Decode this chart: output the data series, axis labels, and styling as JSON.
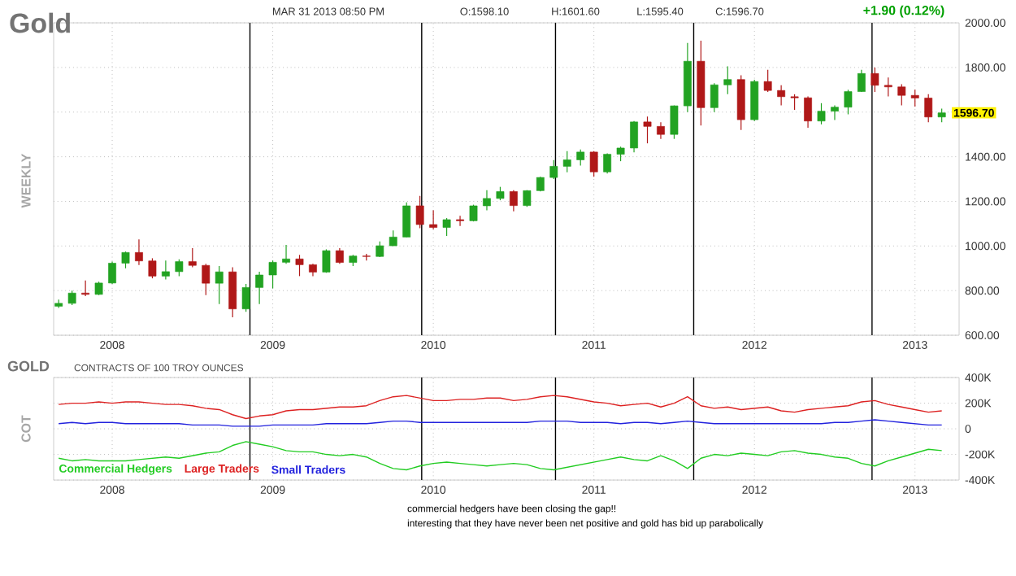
{
  "chart_data": [
    {
      "type": "candlestick",
      "title": "Gold",
      "ylabel": "WEEKLY",
      "annotations": [
        "MAR 31 2013 08:50 PM",
        "O:1598.10",
        "H:1601.60",
        "L:1595.40",
        "C:1596.70",
        "+1.90 (0.12%)",
        {
          "text": "1596.70",
          "x": "2013-03",
          "y": 1596.7
        }
      ],
      "x": [
        "2007-09",
        "2007-10",
        "2007-11",
        "2007-12",
        "2008-01",
        "2008-02",
        "2008-03",
        "2008-04",
        "2008-05",
        "2008-06",
        "2008-07",
        "2008-08",
        "2008-09",
        "2008-10",
        "2008-11",
        "2008-12",
        "2009-01",
        "2009-02",
        "2009-03",
        "2009-04",
        "2009-05",
        "2009-06",
        "2009-07",
        "2009-08",
        "2009-09",
        "2009-10",
        "2009-11",
        "2009-12",
        "2010-01",
        "2010-02",
        "2010-03",
        "2010-04",
        "2010-05",
        "2010-06",
        "2010-07",
        "2010-08",
        "2010-09",
        "2010-10",
        "2010-11",
        "2010-12",
        "2011-01",
        "2011-02",
        "2011-03",
        "2011-04",
        "2011-05",
        "2011-06",
        "2011-07",
        "2011-08",
        "2011-09",
        "2011-10",
        "2011-11",
        "2011-12",
        "2012-01",
        "2012-02",
        "2012-03",
        "2012-04",
        "2012-05",
        "2012-06",
        "2012-07",
        "2012-08",
        "2012-09",
        "2012-10",
        "2012-11",
        "2012-12",
        "2013-01",
        "2013-02",
        "2013-03"
      ],
      "ohlc": [
        [
          730,
          760,
          722,
          743
        ],
        [
          743,
          800,
          735,
          789
        ],
        [
          789,
          845,
          775,
          783
        ],
        [
          783,
          840,
          780,
          834
        ],
        [
          834,
          930,
          830,
          923
        ],
        [
          923,
          975,
          900,
          971
        ],
        [
          971,
          1030,
          915,
          933
        ],
        [
          933,
          945,
          855,
          865
        ],
        [
          865,
          935,
          850,
          885
        ],
        [
          885,
          940,
          865,
          930
        ],
        [
          930,
          990,
          905,
          913
        ],
        [
          913,
          920,
          780,
          833
        ],
        [
          833,
          910,
          740,
          884
        ],
        [
          884,
          905,
          680,
          718
        ],
        [
          718,
          830,
          705,
          814
        ],
        [
          814,
          885,
          740,
          870
        ],
        [
          870,
          935,
          810,
          927
        ],
        [
          927,
          1005,
          920,
          942
        ],
        [
          942,
          960,
          865,
          916
        ],
        [
          916,
          920,
          865,
          883
        ],
        [
          883,
          985,
          880,
          979
        ],
        [
          979,
          990,
          920,
          926
        ],
        [
          926,
          960,
          910,
          955
        ],
        [
          955,
          965,
          935,
          953
        ],
        [
          953,
          1020,
          950,
          1001
        ],
        [
          1001,
          1070,
          1000,
          1040
        ],
        [
          1040,
          1195,
          1040,
          1180
        ],
        [
          1180,
          1225,
          1080,
          1096
        ],
        [
          1096,
          1160,
          1075,
          1083
        ],
        [
          1083,
          1125,
          1045,
          1118
        ],
        [
          1118,
          1135,
          1090,
          1113
        ],
        [
          1113,
          1185,
          1110,
          1180
        ],
        [
          1180,
          1250,
          1160,
          1213
        ],
        [
          1213,
          1265,
          1205,
          1244
        ],
        [
          1244,
          1250,
          1155,
          1181
        ],
        [
          1181,
          1250,
          1175,
          1248
        ],
        [
          1248,
          1310,
          1245,
          1307
        ],
        [
          1307,
          1385,
          1300,
          1357
        ],
        [
          1357,
          1425,
          1330,
          1386
        ],
        [
          1386,
          1432,
          1360,
          1421
        ],
        [
          1421,
          1425,
          1310,
          1332
        ],
        [
          1332,
          1415,
          1325,
          1411
        ],
        [
          1411,
          1445,
          1380,
          1439
        ],
        [
          1439,
          1560,
          1420,
          1556
        ],
        [
          1556,
          1580,
          1460,
          1536
        ],
        [
          1536,
          1555,
          1480,
          1500
        ],
        [
          1500,
          1630,
          1480,
          1628
        ],
        [
          1628,
          1910,
          1600,
          1828
        ],
        [
          1828,
          1920,
          1540,
          1620
        ],
        [
          1620,
          1730,
          1600,
          1722
        ],
        [
          1722,
          1805,
          1680,
          1746
        ],
        [
          1746,
          1765,
          1520,
          1566
        ],
        [
          1566,
          1745,
          1560,
          1737
        ],
        [
          1737,
          1790,
          1690,
          1697
        ],
        [
          1697,
          1720,
          1630,
          1669
        ],
        [
          1669,
          1680,
          1610,
          1664
        ],
        [
          1664,
          1670,
          1530,
          1560
        ],
        [
          1560,
          1640,
          1545,
          1604
        ],
        [
          1604,
          1630,
          1565,
          1622
        ],
        [
          1622,
          1700,
          1590,
          1692
        ],
        [
          1692,
          1790,
          1690,
          1773
        ],
        [
          1773,
          1800,
          1690,
          1720
        ],
        [
          1720,
          1755,
          1670,
          1713
        ],
        [
          1713,
          1725,
          1630,
          1675
        ],
        [
          1675,
          1700,
          1625,
          1663
        ],
        [
          1663,
          1680,
          1555,
          1578
        ],
        [
          1578,
          1616,
          1555,
          1596.7
        ]
      ],
      "colors": [
        "#22a322",
        "#22a322",
        "#b01818",
        "#22a322",
        "#22a322",
        "#22a322",
        "#b01818",
        "#b01818",
        "#22a322",
        "#22a322",
        "#b01818",
        "#b01818",
        "#22a322",
        "#b01818",
        "#22a322",
        "#22a322",
        "#22a322",
        "#22a322",
        "#b01818",
        "#b01818",
        "#22a322",
        "#b01818",
        "#22a322",
        "#b01818",
        "#22a322",
        "#22a322",
        "#22a322",
        "#b01818",
        "#b01818",
        "#22a322",
        "#b01818",
        "#22a322",
        "#22a322",
        "#22a322",
        "#b01818",
        "#22a322",
        "#22a322",
        "#22a322",
        "#22a322",
        "#22a322",
        "#b01818",
        "#22a322",
        "#22a322",
        "#22a322",
        "#b01818",
        "#b01818",
        "#22a322",
        "#22a322",
        "#b01818",
        "#22a322",
        "#22a322",
        "#b01818",
        "#22a322",
        "#b01818",
        "#b01818",
        "#b01818",
        "#b01818",
        "#22a322",
        "#22a322",
        "#22a322",
        "#22a322",
        "#b01818",
        "#b01818",
        "#b01818",
        "#b01818",
        "#b01818",
        "#22a322"
      ],
      "xlim": [
        "2007-08-20",
        "2013-04-10"
      ],
      "xticks": [
        {
          "value": "2008-01",
          "label": "2008"
        },
        {
          "value": "2009-01",
          "label": "2009"
        },
        {
          "value": "2010-01",
          "label": "2010"
        },
        {
          "value": "2011-01",
          "label": "2011"
        },
        {
          "value": "2012-01",
          "label": "2012"
        },
        {
          "value": "2013-01",
          "label": "2013"
        }
      ],
      "ylim": [
        600,
        2000
      ],
      "yticks": [
        {
          "value": 600,
          "label": "600.00"
        },
        {
          "value": 800,
          "label": "800.00"
        },
        {
          "value": 1000,
          "label": "1000.00"
        },
        {
          "value": 1200,
          "label": "1200.00"
        },
        {
          "value": 1400,
          "label": "1400.00"
        },
        {
          "value": 1600,
          "label": null
        },
        {
          "value": 1800,
          "label": "1800.00"
        },
        {
          "value": 2000,
          "label": "2000.00"
        }
      ],
      "grid": true,
      "ref_lines": [
        {
          "axis": "x",
          "value": "2008-11-10",
          "color": "#000000"
        },
        {
          "axis": "x",
          "value": "2009-12-05",
          "color": "#000000"
        },
        {
          "axis": "x",
          "value": "2010-10-05",
          "color": "#000000"
        },
        {
          "axis": "x",
          "value": "2011-08-15",
          "color": "#000000"
        },
        {
          "axis": "x",
          "value": "2012-09-25",
          "color": "#000000"
        }
      ]
    },
    {
      "type": "line",
      "title": "GOLD",
      "subtitle": "CONTRACTS OF 100 TROY OUNCES",
      "ylabel": "COT",
      "annotations": [
        "commercial hedgers have been closing the gap!!",
        "interesting that they have never been net positive and gold has bid up parabolically"
      ],
      "x": [
        "2007-09",
        "2007-10",
        "2007-11",
        "2007-12",
        "2008-01",
        "2008-02",
        "2008-03",
        "2008-04",
        "2008-05",
        "2008-06",
        "2008-07",
        "2008-08",
        "2008-09",
        "2008-10",
        "2008-11",
        "2008-12",
        "2009-01",
        "2009-02",
        "2009-03",
        "2009-04",
        "2009-05",
        "2009-06",
        "2009-07",
        "2009-08",
        "2009-09",
        "2009-10",
        "2009-11",
        "2009-12",
        "2010-01",
        "2010-02",
        "2010-03",
        "2010-04",
        "2010-05",
        "2010-06",
        "2010-07",
        "2010-08",
        "2010-09",
        "2010-10",
        "2010-11",
        "2010-12",
        "2011-01",
        "2011-02",
        "2011-03",
        "2011-04",
        "2011-05",
        "2011-06",
        "2011-07",
        "2011-08",
        "2011-09",
        "2011-10",
        "2011-11",
        "2011-12",
        "2012-01",
        "2012-02",
        "2012-03",
        "2012-04",
        "2012-05",
        "2012-06",
        "2012-07",
        "2012-08",
        "2012-09",
        "2012-10",
        "2012-11",
        "2012-12",
        "2013-01",
        "2013-02",
        "2013-03"
      ],
      "series": [
        {
          "name": "Commercial Hedgers",
          "color": "#22cc22",
          "values": [
            -230000,
            -250000,
            -240000,
            -250000,
            -250000,
            -250000,
            -240000,
            -230000,
            -220000,
            -230000,
            -210000,
            -190000,
            -180000,
            -130000,
            -100000,
            -120000,
            -140000,
            -170000,
            -180000,
            -180000,
            -200000,
            -210000,
            -200000,
            -220000,
            -270000,
            -310000,
            -320000,
            -290000,
            -270000,
            -260000,
            -270000,
            -280000,
            -290000,
            -280000,
            -270000,
            -280000,
            -310000,
            -320000,
            -300000,
            -280000,
            -260000,
            -240000,
            -220000,
            -240000,
            -250000,
            -210000,
            -250000,
            -310000,
            -230000,
            -200000,
            -210000,
            -190000,
            -200000,
            -210000,
            -180000,
            -170000,
            -190000,
            -200000,
            -220000,
            -230000,
            -270000,
            -290000,
            -250000,
            -220000,
            -190000,
            -160000,
            -170000
          ]
        },
        {
          "name": "Large Traders",
          "color": "#dd2222",
          "values": [
            190000,
            200000,
            200000,
            210000,
            200000,
            210000,
            210000,
            200000,
            190000,
            190000,
            180000,
            160000,
            150000,
            110000,
            80000,
            100000,
            110000,
            140000,
            150000,
            150000,
            160000,
            170000,
            170000,
            180000,
            220000,
            250000,
            260000,
            240000,
            220000,
            220000,
            230000,
            230000,
            240000,
            240000,
            220000,
            230000,
            250000,
            260000,
            250000,
            230000,
            210000,
            200000,
            180000,
            190000,
            200000,
            170000,
            200000,
            250000,
            180000,
            160000,
            170000,
            150000,
            160000,
            170000,
            140000,
            130000,
            150000,
            160000,
            170000,
            180000,
            210000,
            220000,
            190000,
            170000,
            150000,
            130000,
            140000
          ]
        },
        {
          "name": "Small Traders",
          "color": "#2222dd",
          "values": [
            40000,
            50000,
            40000,
            50000,
            50000,
            40000,
            40000,
            40000,
            40000,
            40000,
            30000,
            30000,
            30000,
            20000,
            20000,
            20000,
            30000,
            30000,
            30000,
            30000,
            40000,
            40000,
            40000,
            40000,
            50000,
            60000,
            60000,
            50000,
            50000,
            50000,
            50000,
            50000,
            50000,
            50000,
            50000,
            50000,
            60000,
            60000,
            60000,
            50000,
            50000,
            50000,
            40000,
            50000,
            50000,
            40000,
            50000,
            60000,
            50000,
            40000,
            40000,
            40000,
            40000,
            40000,
            40000,
            40000,
            40000,
            40000,
            50000,
            50000,
            60000,
            70000,
            60000,
            50000,
            40000,
            30000,
            30000
          ]
        }
      ],
      "xlim": [
        "2007-08-20",
        "2013-04-10"
      ],
      "xticks": [
        {
          "value": "2008-01",
          "label": "2008"
        },
        {
          "value": "2009-01",
          "label": "2009"
        },
        {
          "value": "2010-01",
          "label": "2010"
        },
        {
          "value": "2011-01",
          "label": "2011"
        },
        {
          "value": "2012-01",
          "label": "2012"
        },
        {
          "value": "2013-01",
          "label": "2013"
        }
      ],
      "ylim": [
        -400000,
        400000
      ],
      "yticks": [
        {
          "value": -400000,
          "label": "-400K"
        },
        {
          "value": -200000,
          "label": "-200K"
        },
        {
          "value": 0,
          "label": "0"
        },
        {
          "value": 200000,
          "label": "200K"
        },
        {
          "value": 400000,
          "label": "400K"
        }
      ],
      "grid": true,
      "legend": "bottom left",
      "marker": "none",
      "line_style": "solid",
      "ref_lines": [
        {
          "axis": "x",
          "value": "2008-11-10",
          "color": "#000000"
        },
        {
          "axis": "x",
          "value": "2009-12-05",
          "color": "#000000"
        },
        {
          "axis": "x",
          "value": "2010-10-05",
          "color": "#000000"
        },
        {
          "axis": "x",
          "value": "2011-08-15",
          "color": "#000000"
        },
        {
          "axis": "x",
          "value": "2012-09-25",
          "color": "#000000"
        }
      ]
    }
  ]
}
